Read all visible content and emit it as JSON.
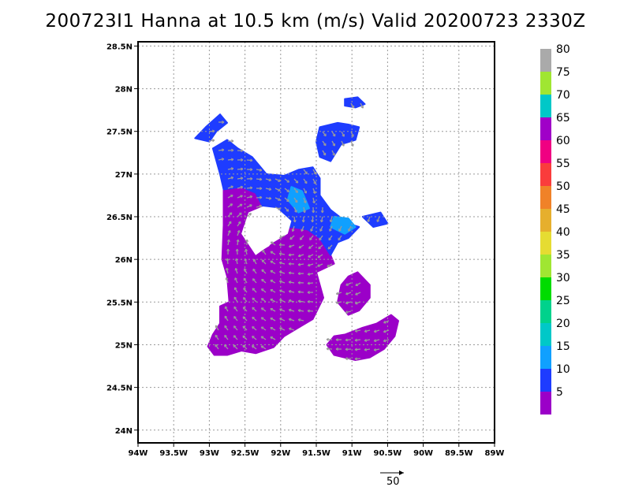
{
  "title": "200723I1 Hanna at 10.5 km (m/s) Valid 20200723 2330Z",
  "map": {
    "lon_range": [
      -94,
      -89
    ],
    "lat_range": [
      23.85,
      28.55
    ],
    "grid": true,
    "x_ticks": [
      {
        "lon": -94,
        "label": "94W"
      },
      {
        "lon": -93.5,
        "label": "93.5W"
      },
      {
        "lon": -93,
        "label": "93W"
      },
      {
        "lon": -92.5,
        "label": "92.5W"
      },
      {
        "lon": -92,
        "label": "92W"
      },
      {
        "lon": -91.5,
        "label": "91.5W"
      },
      {
        "lon": -91,
        "label": "91W"
      },
      {
        "lon": -90.5,
        "label": "90.5W"
      },
      {
        "lon": -90,
        "label": "90W"
      },
      {
        "lon": -89.5,
        "label": "89.5W"
      },
      {
        "lon": -89,
        "label": "89W"
      }
    ],
    "y_ticks": [
      {
        "lat": 28.5,
        "label": "28.5N"
      },
      {
        "lat": 28,
        "label": "28N"
      },
      {
        "lat": 27.5,
        "label": "27.5N"
      },
      {
        "lat": 27,
        "label": "27N"
      },
      {
        "lat": 26.5,
        "label": "26.5N"
      },
      {
        "lat": 26,
        "label": "26N"
      },
      {
        "lat": 25.5,
        "label": "25.5N"
      },
      {
        "lat": 25,
        "label": "25N"
      },
      {
        "lat": 24.5,
        "label": "24.5N"
      },
      {
        "lat": 24,
        "label": "24N"
      }
    ]
  },
  "colorbar": {
    "bins": [
      {
        "label": "5",
        "color": "#9b00c8"
      },
      {
        "label": "10",
        "color": "#1e3cff"
      },
      {
        "label": "15",
        "color": "#10a0ff"
      },
      {
        "label": "20",
        "color": "#00c8c8"
      },
      {
        "label": "25",
        "color": "#00d28c"
      },
      {
        "label": "30",
        "color": "#00dc00"
      },
      {
        "label": "35",
        "color": "#a0e632"
      },
      {
        "label": "40",
        "color": "#e6dc32"
      },
      {
        "label": "45",
        "color": "#e6af2d"
      },
      {
        "label": "50",
        "color": "#f08228"
      },
      {
        "label": "55",
        "color": "#fa3c3c"
      },
      {
        "label": "60",
        "color": "#f00082"
      },
      {
        "label": "65",
        "color": "#a000c8"
      },
      {
        "label": "70",
        "color": "#00c8c8"
      },
      {
        "label": "75",
        "color": "#a0e632"
      },
      {
        "label": "80",
        "color": "#aaaaaa"
      }
    ]
  },
  "reference_vector": {
    "label": "50"
  },
  "wind_field": [
    {
      "name": "main-purple-body",
      "speed_class": "5",
      "color": "#9b00c8",
      "outline": [
        [
          -92.8,
          26.82
        ],
        [
          -92.55,
          26.85
        ],
        [
          -92.35,
          26.78
        ],
        [
          -92.25,
          26.62
        ],
        [
          -92.45,
          26.55
        ],
        [
          -92.55,
          26.3
        ],
        [
          -92.35,
          26.05
        ],
        [
          -92.15,
          26.15
        ],
        [
          -92.05,
          26.35
        ],
        [
          -91.85,
          26.38
        ],
        [
          -91.62,
          26.35
        ],
        [
          -91.45,
          26.25
        ],
        [
          -91.3,
          26.05
        ],
        [
          -91.25,
          25.95
        ],
        [
          -91.5,
          25.85
        ],
        [
          -91.4,
          25.55
        ],
        [
          -91.55,
          25.3
        ],
        [
          -91.75,
          25.2
        ],
        [
          -91.95,
          25.1
        ],
        [
          -92.1,
          24.97
        ],
        [
          -92.35,
          24.9
        ],
        [
          -92.55,
          24.93
        ],
        [
          -92.75,
          24.88
        ],
        [
          -92.93,
          24.88
        ],
        [
          -93.02,
          24.98
        ],
        [
          -92.95,
          25.12
        ],
        [
          -92.85,
          25.25
        ],
        [
          -92.85,
          25.45
        ],
        [
          -92.72,
          25.5
        ],
        [
          -92.75,
          25.8
        ],
        [
          -92.82,
          26.0
        ],
        [
          -92.8,
          26.4
        ]
      ]
    },
    {
      "name": "blue-northern-arc",
      "speed_class": "10",
      "color": "#1e3cff",
      "outline": [
        [
          -92.95,
          27.3
        ],
        [
          -92.75,
          27.4
        ],
        [
          -92.6,
          27.3
        ],
        [
          -92.4,
          27.2
        ],
        [
          -92.2,
          27.0
        ],
        [
          -91.95,
          26.98
        ],
        [
          -91.75,
          27.05
        ],
        [
          -91.55,
          27.08
        ],
        [
          -91.45,
          26.95
        ],
        [
          -91.45,
          26.75
        ],
        [
          -91.3,
          26.58
        ],
        [
          -91.05,
          26.42
        ],
        [
          -90.9,
          26.38
        ],
        [
          -91.05,
          26.25
        ],
        [
          -91.2,
          26.2
        ],
        [
          -91.3,
          26.05
        ],
        [
          -91.45,
          26.25
        ],
        [
          -91.62,
          26.35
        ],
        [
          -91.85,
          26.38
        ],
        [
          -92.05,
          26.35
        ],
        [
          -92.25,
          26.62
        ],
        [
          -92.35,
          26.78
        ],
        [
          -92.55,
          26.85
        ],
        [
          -92.8,
          26.82
        ],
        [
          -92.85,
          27.0
        ]
      ]
    },
    {
      "name": "blue-northeast-patch",
      "speed_class": "10",
      "color": "#1e3cff",
      "outline": [
        [
          -91.45,
          27.55
        ],
        [
          -91.2,
          27.6
        ],
        [
          -91.05,
          27.58
        ],
        [
          -90.9,
          27.55
        ],
        [
          -90.95,
          27.4
        ],
        [
          -91.15,
          27.35
        ],
        [
          -91.3,
          27.15
        ],
        [
          -91.45,
          27.2
        ],
        [
          -91.5,
          27.38
        ]
      ]
    },
    {
      "name": "blue-small-north",
      "speed_class": "10",
      "color": "#1e3cff",
      "outline": [
        [
          -91.1,
          27.88
        ],
        [
          -90.92,
          27.9
        ],
        [
          -90.82,
          27.82
        ],
        [
          -90.95,
          27.78
        ],
        [
          -91.1,
          27.8
        ]
      ]
    },
    {
      "name": "blue-northwest-streak",
      "speed_class": "10",
      "color": "#1e3cff",
      "outline": [
        [
          -93.2,
          27.42
        ],
        [
          -93.05,
          27.55
        ],
        [
          -92.85,
          27.7
        ],
        [
          -92.75,
          27.6
        ],
        [
          -92.9,
          27.5
        ],
        [
          -93.0,
          27.38
        ]
      ]
    },
    {
      "name": "blue-east-fragments",
      "speed_class": "10",
      "color": "#1e3cff",
      "outline": [
        [
          -90.85,
          26.5
        ],
        [
          -90.6,
          26.55
        ],
        [
          -90.5,
          26.42
        ],
        [
          -90.7,
          26.38
        ]
      ]
    },
    {
      "name": "light-blue-center",
      "speed_class": "15",
      "color": "#10a0ff",
      "outline": [
        [
          -91.85,
          26.85
        ],
        [
          -91.7,
          26.8
        ],
        [
          -91.6,
          26.6
        ],
        [
          -91.75,
          26.55
        ],
        [
          -91.9,
          26.7
        ]
      ]
    },
    {
      "name": "light-blue-east",
      "speed_class": "15",
      "color": "#10a0ff",
      "outline": [
        [
          -91.25,
          26.5
        ],
        [
          -91.05,
          26.48
        ],
        [
          -90.95,
          26.38
        ],
        [
          -91.1,
          26.3
        ],
        [
          -91.3,
          26.38
        ]
      ]
    },
    {
      "name": "southeast-purple-band",
      "speed_class": "5",
      "color": "#9b00c8",
      "outline": [
        [
          -90.92,
          25.85
        ],
        [
          -90.75,
          25.7
        ],
        [
          -90.75,
          25.55
        ],
        [
          -90.9,
          25.4
        ],
        [
          -91.05,
          25.35
        ],
        [
          -91.2,
          25.5
        ],
        [
          -91.15,
          25.7
        ],
        [
          -91.05,
          25.8
        ]
      ]
    },
    {
      "name": "southeast-purple-blob",
      "speed_class": "5",
      "color": "#9b00c8",
      "outline": [
        [
          -91.1,
          25.12
        ],
        [
          -90.85,
          25.2
        ],
        [
          -90.65,
          25.25
        ],
        [
          -90.45,
          25.35
        ],
        [
          -90.35,
          25.28
        ],
        [
          -90.4,
          25.1
        ],
        [
          -90.55,
          24.95
        ],
        [
          -90.75,
          24.85
        ],
        [
          -90.95,
          24.82
        ],
        [
          -91.25,
          24.88
        ],
        [
          -91.35,
          25.0
        ],
        [
          -91.25,
          25.1
        ]
      ]
    }
  ]
}
